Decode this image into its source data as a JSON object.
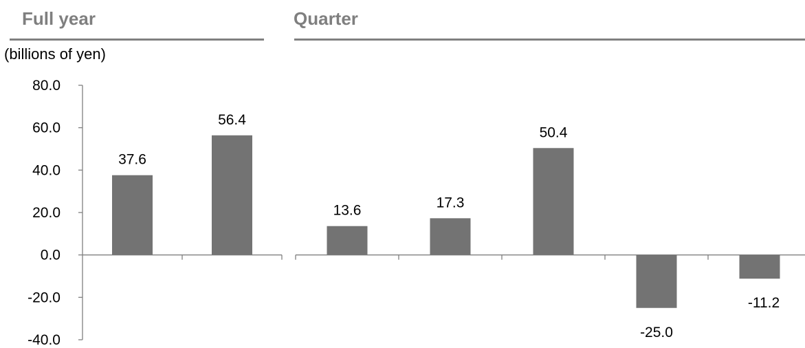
{
  "headers": {
    "full_year": "Full year",
    "quarter": "Quarter"
  },
  "unit_label": "(billions of yen)",
  "colors": {
    "bar": "#737373",
    "axis": "#808080",
    "header_text": "#7f7f7f"
  },
  "chart_data": [
    {
      "type": "bar",
      "group": "Full year",
      "values": [
        37.6,
        56.4
      ],
      "data_labels": [
        "37.6",
        "56.4"
      ],
      "ylim": [
        -40,
        80
      ],
      "yticks": [
        "80.0",
        "60.0",
        "40.0",
        "20.0",
        "0.0",
        "-20.0",
        "-40.0"
      ],
      "ylabel": "(billions of yen)"
    },
    {
      "type": "bar",
      "group": "Quarter",
      "values": [
        13.6,
        17.3,
        50.4,
        -25.0,
        -11.2
      ],
      "data_labels": [
        "13.6",
        "17.3",
        "50.4",
        "-25.0",
        "-11.2"
      ],
      "ylim": [
        -40,
        80
      ]
    }
  ]
}
